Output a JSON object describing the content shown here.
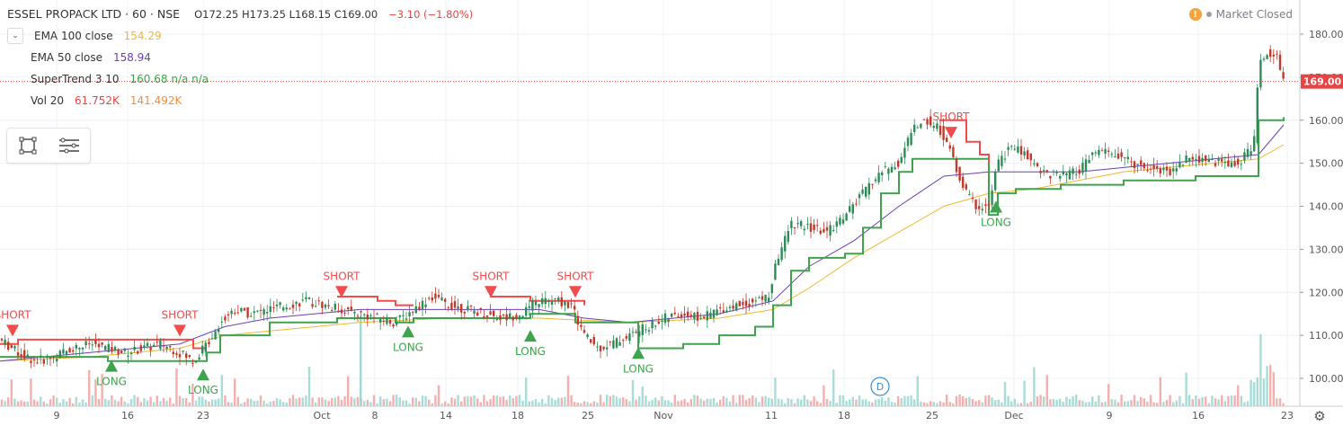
{
  "header": {
    "symbol": "ESSEL PROPACK LTD · 60 · NSE",
    "ohlc": "O172.25  H173.25  L168.15  C169.00",
    "change": "−3.10 (−1.80%)",
    "market_status": "Market Closed",
    "warn_glyph": "!"
  },
  "studies": [
    {
      "name": "EMA 100 close",
      "value": "154.29",
      "color": "#f2b72d"
    },
    {
      "name": "EMA 50 close",
      "value": "158.94",
      "color": "#6a3fb5"
    },
    {
      "name": "SuperTrend 3 10",
      "value": "160.68  n/a  n/a",
      "color": "#3fa34d"
    },
    {
      "name": "Vol 20",
      "value": "61.752K",
      "value2": "141.492K",
      "color": "#e64545",
      "color2": "#f08c3c"
    }
  ],
  "chart_data": {
    "type": "candlestick",
    "price_axis": {
      "ticks": [
        "180.00",
        "170.00",
        "160.00",
        "150.00",
        "140.00",
        "130.00",
        "120.00",
        "110.00",
        "100.00"
      ],
      "range": [
        97,
        186
      ]
    },
    "last_price_label": "169.00",
    "last_price": 169.0,
    "x_labels": [
      "9",
      "16",
      "23",
      "Oct",
      "8",
      "14",
      "18",
      "25",
      "Nov",
      "11",
      "18",
      "25",
      "Dec",
      "9",
      "16",
      "23"
    ],
    "close_series_points": [
      [
        0,
        109
      ],
      [
        20,
        106
      ],
      [
        40,
        104
      ],
      [
        60,
        105
      ],
      [
        80,
        107
      ],
      [
        100,
        108
      ],
      [
        120,
        107
      ],
      [
        140,
        106
      ],
      [
        160,
        107
      ],
      [
        180,
        108
      ],
      [
        200,
        106
      ],
      [
        215,
        104
      ],
      [
        230,
        108
      ],
      [
        245,
        113
      ],
      [
        260,
        116
      ],
      [
        280,
        115
      ],
      [
        300,
        116
      ],
      [
        320,
        117
      ],
      [
        340,
        118
      ],
      [
        360,
        117
      ],
      [
        380,
        116
      ],
      [
        400,
        115
      ],
      [
        420,
        114
      ],
      [
        440,
        113
      ],
      [
        460,
        116
      ],
      [
        480,
        119
      ],
      [
        500,
        117
      ],
      [
        520,
        116
      ],
      [
        540,
        115
      ],
      [
        560,
        114
      ],
      [
        580,
        115
      ],
      [
        600,
        118
      ],
      [
        620,
        118
      ],
      [
        635,
        117
      ],
      [
        650,
        110
      ],
      [
        665,
        107
      ],
      [
        680,
        108
      ],
      [
        700,
        110
      ],
      [
        720,
        112
      ],
      [
        740,
        114
      ],
      [
        760,
        115
      ],
      [
        780,
        114
      ],
      [
        800,
        116
      ],
      [
        820,
        117
      ],
      [
        840,
        118
      ],
      [
        855,
        119
      ],
      [
        865,
        128
      ],
      [
        880,
        136
      ],
      [
        900,
        135
      ],
      [
        920,
        134
      ],
      [
        940,
        138
      ],
      [
        960,
        143
      ],
      [
        980,
        148
      ],
      [
        1000,
        150
      ],
      [
        1015,
        158
      ],
      [
        1030,
        160
      ],
      [
        1045,
        158
      ],
      [
        1055,
        154
      ],
      [
        1070,
        145
      ],
      [
        1085,
        140
      ],
      [
        1100,
        140
      ],
      [
        1110,
        150
      ],
      [
        1125,
        154
      ],
      [
        1140,
        152
      ],
      [
        1160,
        148
      ],
      [
        1180,
        147
      ],
      [
        1200,
        148
      ],
      [
        1220,
        153
      ],
      [
        1240,
        152
      ],
      [
        1260,
        150
      ],
      [
        1280,
        149
      ],
      [
        1300,
        148
      ],
      [
        1320,
        151
      ],
      [
        1340,
        151
      ],
      [
        1360,
        150
      ],
      [
        1380,
        150
      ],
      [
        1395,
        155
      ],
      [
        1400,
        172
      ],
      [
        1410,
        176
      ],
      [
        1420,
        175
      ],
      [
        1428,
        169
      ]
    ],
    "ema100": [
      [
        0,
        104
      ],
      [
        100,
        105
      ],
      [
        200,
        107
      ],
      [
        250,
        110
      ],
      [
        300,
        111
      ],
      [
        400,
        113
      ],
      [
        500,
        114
      ],
      [
        600,
        114
      ],
      [
        700,
        113
      ],
      [
        800,
        114
      ],
      [
        860,
        116
      ],
      [
        900,
        121
      ],
      [
        950,
        128
      ],
      [
        1000,
        134
      ],
      [
        1050,
        140
      ],
      [
        1100,
        143
      ],
      [
        1150,
        144
      ],
      [
        1200,
        146
      ],
      [
        1250,
        148
      ],
      [
        1300,
        149
      ],
      [
        1350,
        150
      ],
      [
        1400,
        151
      ],
      [
        1428,
        154.3
      ]
    ],
    "ema50": [
      [
        0,
        104
      ],
      [
        100,
        106
      ],
      [
        200,
        108
      ],
      [
        250,
        112
      ],
      [
        300,
        114
      ],
      [
        400,
        116
      ],
      [
        500,
        116
      ],
      [
        600,
        116
      ],
      [
        650,
        114
      ],
      [
        700,
        113
      ],
      [
        800,
        115
      ],
      [
        860,
        118
      ],
      [
        900,
        126
      ],
      [
        950,
        132
      ],
      [
        1000,
        140
      ],
      [
        1050,
        147
      ],
      [
        1100,
        148
      ],
      [
        1150,
        148
      ],
      [
        1200,
        148
      ],
      [
        1250,
        149
      ],
      [
        1300,
        150
      ],
      [
        1350,
        151
      ],
      [
        1400,
        152
      ],
      [
        1428,
        158.9
      ]
    ],
    "supertrend_red": [
      [
        0,
        108
      ],
      [
        20,
        109
      ],
      [
        200,
        109
      ],
      [
        215,
        107
      ],
      [
        230,
        107
      ]
    ],
    "supertrend_red2": [
      [
        375,
        119
      ],
      [
        420,
        118
      ],
      [
        440,
        117
      ],
      [
        460,
        117
      ]
    ],
    "supertrend_red3": [
      [
        545,
        119
      ],
      [
        590,
        118
      ],
      [
        635,
        118
      ],
      [
        650,
        117
      ]
    ],
    "supertrend_red4": [
      [
        1045,
        160
      ],
      [
        1060,
        160
      ],
      [
        1075,
        155
      ],
      [
        1090,
        152
      ],
      [
        1100,
        150
      ]
    ],
    "supertrend_green": [
      [
        0,
        105
      ],
      [
        60,
        105
      ],
      [
        120,
        104
      ],
      [
        180,
        104
      ],
      [
        215,
        104
      ],
      [
        230,
        106
      ],
      [
        245,
        110
      ],
      [
        300,
        113
      ],
      [
        375,
        114
      ],
      [
        440,
        113
      ],
      [
        460,
        114
      ],
      [
        560,
        114
      ],
      [
        590,
        115
      ],
      [
        640,
        113
      ],
      [
        710,
        107
      ],
      [
        760,
        108
      ],
      [
        800,
        110
      ],
      [
        840,
        112
      ],
      [
        860,
        117
      ],
      [
        880,
        125
      ],
      [
        900,
        128
      ],
      [
        940,
        129
      ],
      [
        960,
        135
      ],
      [
        980,
        143
      ],
      [
        1000,
        148
      ],
      [
        1015,
        151
      ],
      [
        1045,
        151
      ],
      [
        1100,
        138
      ],
      [
        1110,
        143
      ],
      [
        1130,
        144
      ],
      [
        1180,
        145
      ],
      [
        1250,
        146
      ],
      [
        1330,
        147
      ],
      [
        1390,
        147
      ],
      [
        1400,
        160
      ],
      [
        1428,
        160.7
      ]
    ],
    "signals": [
      {
        "label": "SHORT",
        "type": "short",
        "x": 14,
        "price": 111
      },
      {
        "label": "LONG",
        "type": "long",
        "x": 124,
        "price": 103
      },
      {
        "label": "SHORT",
        "type": "short",
        "x": 200,
        "price": 111
      },
      {
        "label": "LONG",
        "type": "long",
        "x": 226,
        "price": 101
      },
      {
        "label": "SHORT",
        "type": "short",
        "x": 380,
        "price": 120
      },
      {
        "label": "LONG",
        "type": "long",
        "x": 454,
        "price": 111
      },
      {
        "label": "SHORT",
        "type": "short",
        "x": 546,
        "price": 120
      },
      {
        "label": "LONG",
        "type": "long",
        "x": 590,
        "price": 110
      },
      {
        "label": "SHORT",
        "type": "short",
        "x": 640,
        "price": 120
      },
      {
        "label": "LONG",
        "type": "long",
        "x": 710,
        "price": 106
      },
      {
        "label": "SHORT",
        "type": "short",
        "x": 1058,
        "price": 157
      },
      {
        "label": "LONG",
        "type": "long",
        "x": 1108,
        "price": 140
      }
    ],
    "dividend_marker": {
      "label": "D",
      "x": 979
    },
    "colors": {
      "up": "#26a69a",
      "down": "#ef5350",
      "short": "#f24b4b",
      "long": "#3fa34d",
      "ema100": "#f2b72d",
      "ema50": "#6a3fb5",
      "axis": "#8b8f96",
      "grid": "#eef0f3",
      "price_label_bg": "#e64545"
    }
  }
}
